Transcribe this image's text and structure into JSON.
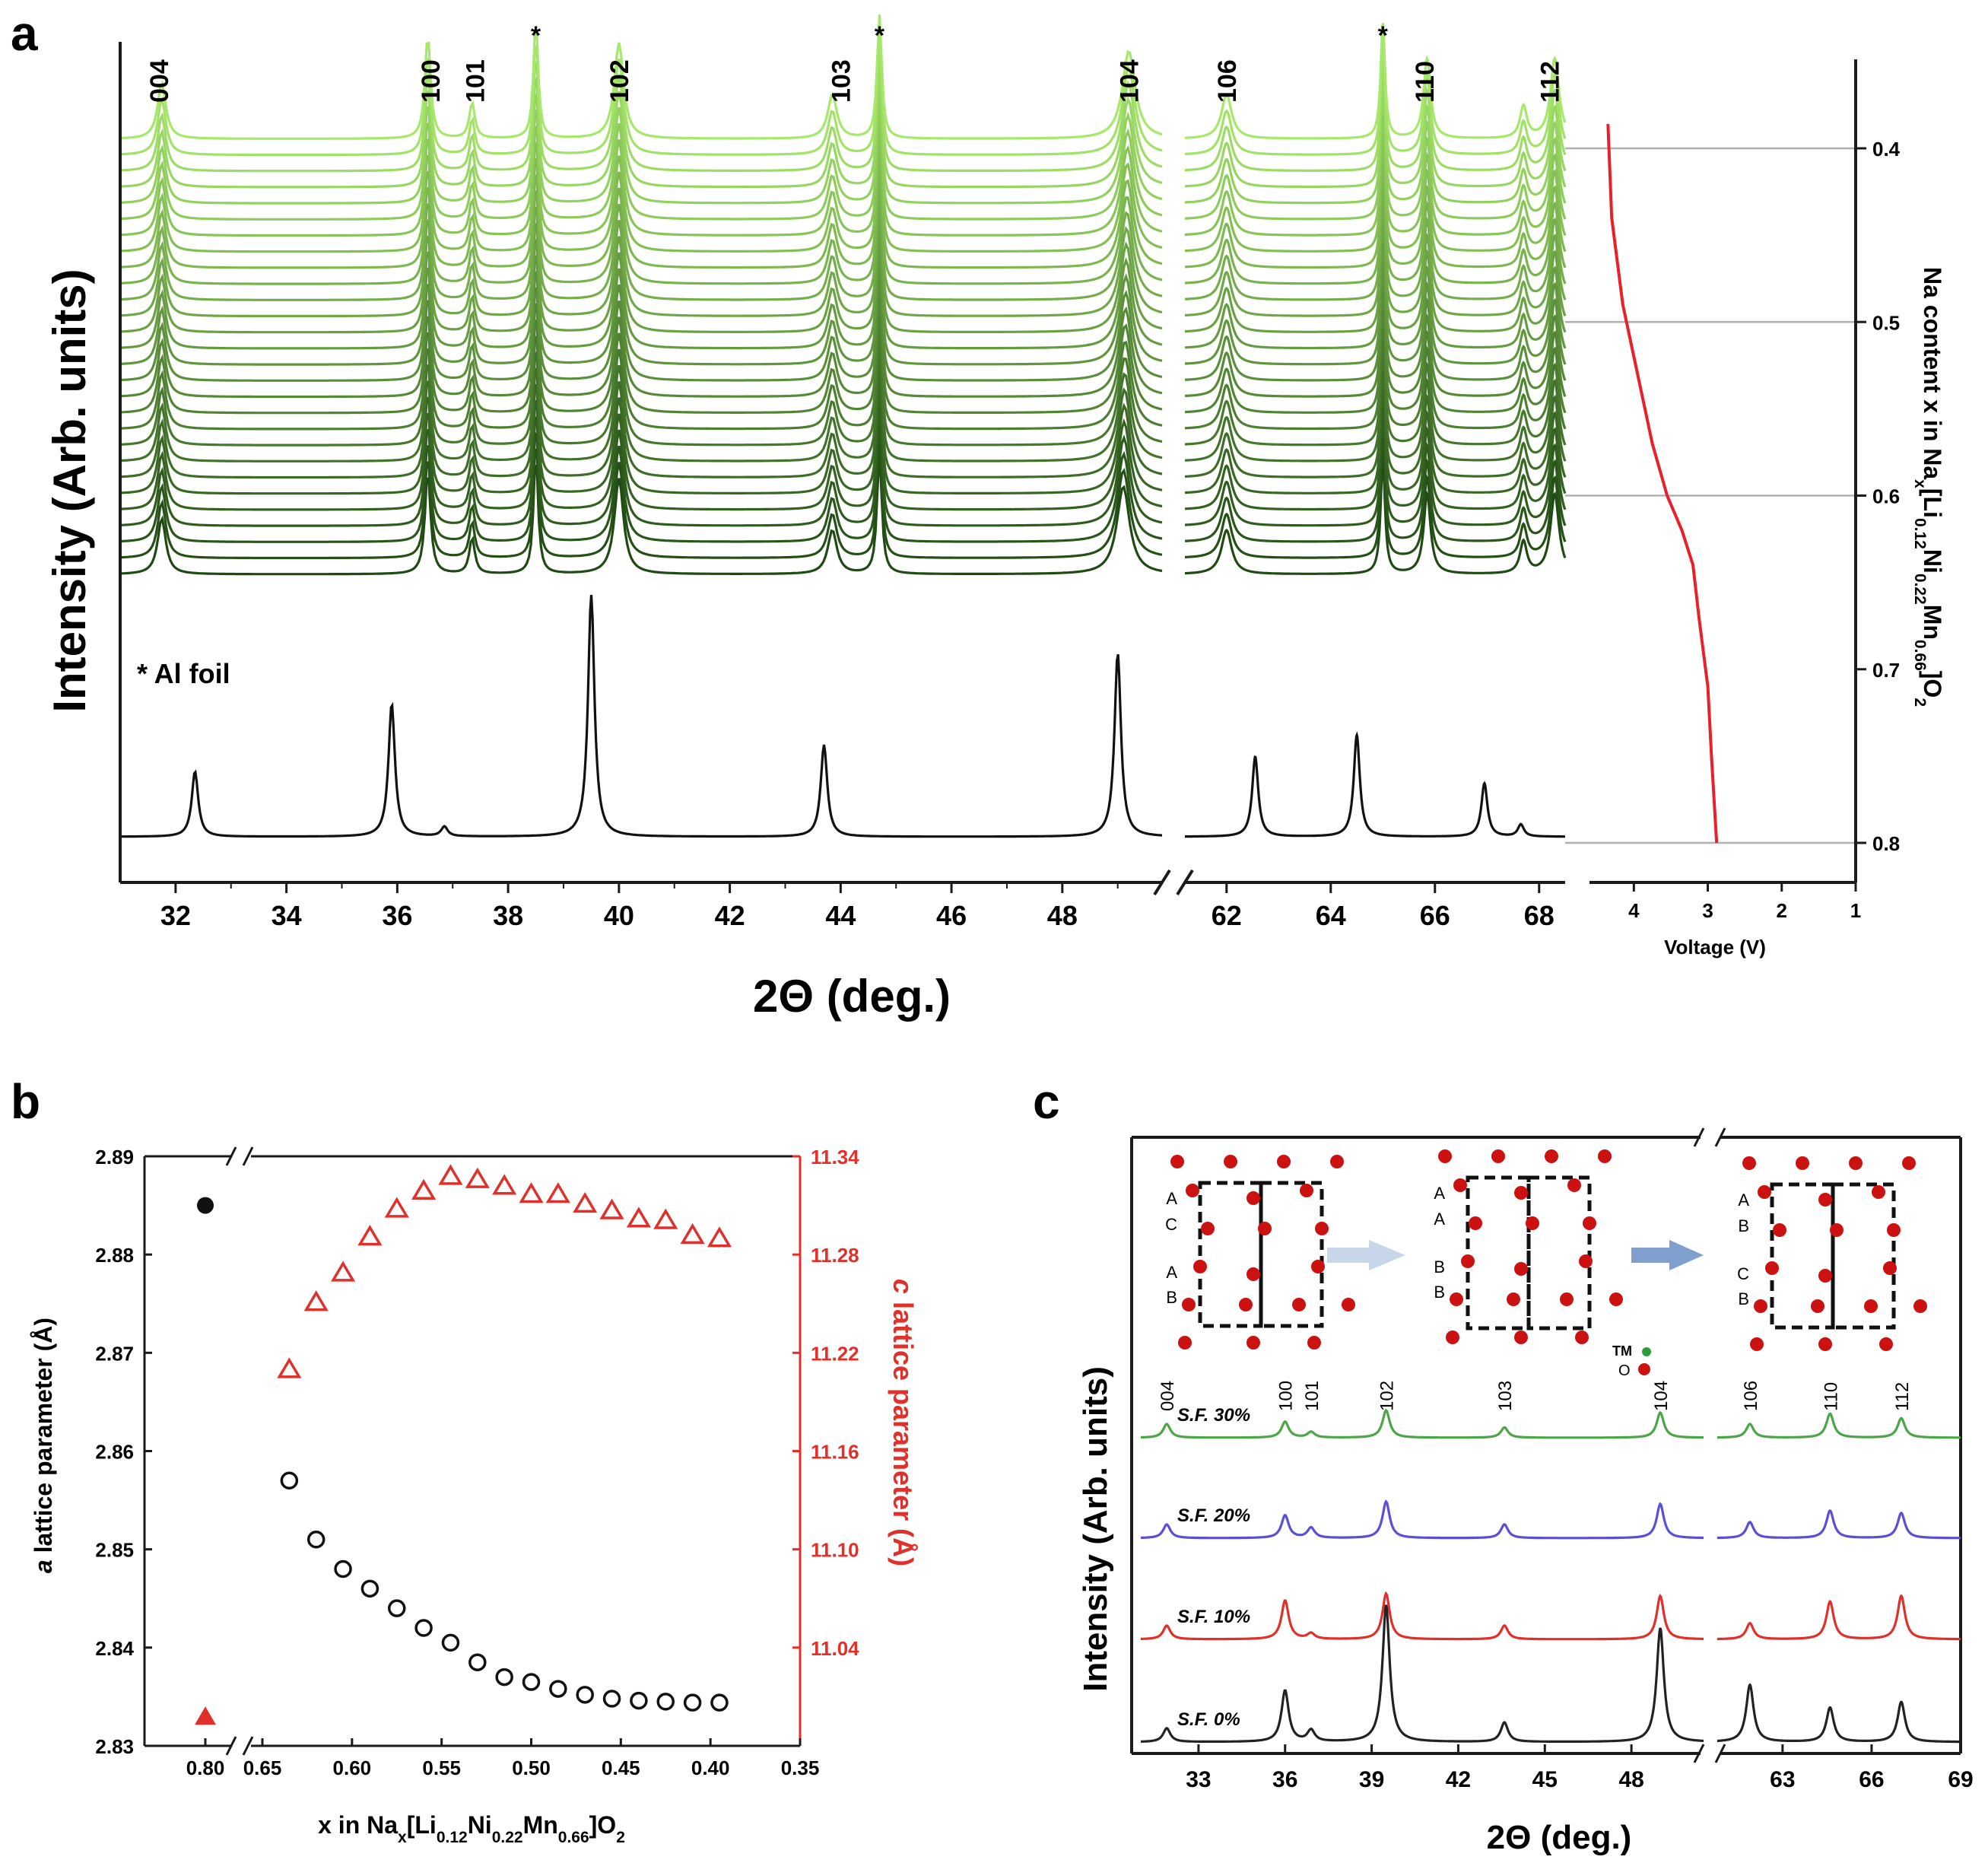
{
  "colors": {
    "axis": "#1a1a1a",
    "voltage": "#e8202a",
    "grid": "#b0b0b0",
    "green_light": "#a6e86a",
    "green_dark": "#1f4a13",
    "red": "#e0302a",
    "blue": "#5a4fd6",
    "sf30": "#4aa646",
    "sf20": "#5a4fd6",
    "sf10": "#e0302a",
    "sf0": "#222222",
    "arrow_left": "#c8d6ea",
    "arrow_right": "#7f9fcf",
    "atom_o": "#cc1111",
    "atom_tm": "#2a9a3a"
  },
  "chart_data": [
    {
      "panel": "a",
      "type": "line",
      "panel_label": "a",
      "ylabel": "Intensity (Arb. units)",
      "xlabel": "2Θ (deg.)",
      "xlim_left": [
        31,
        49.8
      ],
      "xlim_right": [
        61.2,
        68.5
      ],
      "xticks_left": [
        "32",
        "34",
        "36",
        "38",
        "40",
        "42",
        "44",
        "46",
        "48"
      ],
      "xticks_right": [
        "62",
        "64",
        "66",
        "68"
      ],
      "peak_labels": [
        {
          "text": "004",
          "x": 31.7
        },
        {
          "text": "100",
          "x": 36.6
        },
        {
          "text": "101",
          "x": 37.4
        },
        {
          "text": "*",
          "x": 38.5
        },
        {
          "text": "102",
          "x": 40.0
        },
        {
          "text": "103",
          "x": 44.0
        },
        {
          "text": "*",
          "x": 44.7
        },
        {
          "text": "104",
          "x": 49.2
        },
        {
          "text": "106",
          "x": 62.0
        },
        {
          "text": "*",
          "x": 65.0
        },
        {
          "text": "110",
          "x": 65.8
        },
        {
          "text": "112",
          "x": 68.2
        }
      ],
      "annotation": "* Al foil",
      "n_operando_patterns": 28,
      "operando_peaks": [
        {
          "x": 31.75,
          "h": 0.7,
          "w": 0.09
        },
        {
          "x": 36.55,
          "h": 1.3,
          "w": 0.06
        },
        {
          "x": 37.35,
          "h": 0.45,
          "w": 0.06
        },
        {
          "x": 38.5,
          "h": 1.5,
          "w": 0.05
        },
        {
          "x": 40.0,
          "h": 1.2,
          "w": 0.1
        },
        {
          "x": 43.85,
          "h": 0.55,
          "w": 0.1
        },
        {
          "x": 44.7,
          "h": 1.55,
          "w": 0.05
        },
        {
          "x": 49.1,
          "h": 1.1,
          "w": 0.14
        },
        {
          "x": 62.0,
          "h": 0.55,
          "w": 0.12
        },
        {
          "x": 65.0,
          "h": 1.45,
          "w": 0.05
        },
        {
          "x": 65.85,
          "h": 1.0,
          "w": 0.08
        },
        {
          "x": 67.7,
          "h": 0.4,
          "w": 0.08
        },
        {
          "x": 68.3,
          "h": 1.0,
          "w": 0.1
        }
      ],
      "reference_pattern": [
        {
          "x": 32.35,
          "h": 0.27
        },
        {
          "x": 35.9,
          "h": 0.55
        },
        {
          "x": 36.85,
          "h": 0.04
        },
        {
          "x": 39.5,
          "h": 1.0
        },
        {
          "x": 43.7,
          "h": 0.38
        },
        {
          "x": 49.0,
          "h": 0.76
        },
        {
          "x": 62.55,
          "h": 0.33
        },
        {
          "x": 64.5,
          "h": 0.42
        },
        {
          "x": 66.95,
          "h": 0.22
        },
        {
          "x": 67.65,
          "h": 0.05
        }
      ]
    },
    {
      "panel": "a-voltage",
      "type": "line",
      "xlabel": "Voltage (V)",
      "ylabel": "Na content x in Na",
      "ylabel_sub_1": "x",
      "ylabel_mid_1": "[Li",
      "ylabel_sub_2": "0.12",
      "ylabel_mid_2": "Ni",
      "ylabel_sub_3": "0.22",
      "ylabel_mid_3": "Mn",
      "ylabel_sub_4": "0.66",
      "ylabel_mid_4": "]O",
      "ylabel_sub_5": "2",
      "xlim": [
        4.6,
        1.0
      ],
      "ylim": [
        0.35,
        0.83
      ],
      "xticks": [
        "4",
        "3",
        "2",
        "1"
      ],
      "yticks": [
        "0.4",
        "0.5",
        "0.6",
        "0.7",
        "0.8"
      ],
      "gridlines_y": [
        0.4,
        0.5,
        0.6,
        0.8
      ],
      "x": [
        4.35,
        4.3,
        4.15,
        3.95,
        3.75,
        3.55,
        3.35,
        3.2,
        3.12,
        3.0,
        2.95,
        2.88
      ],
      "y": [
        0.386,
        0.44,
        0.49,
        0.53,
        0.57,
        0.6,
        0.62,
        0.64,
        0.67,
        0.71,
        0.75,
        0.8
      ]
    },
    {
      "panel": "b",
      "type": "scatter",
      "panel_label": "b",
      "xlabel": "x in Na",
      "xlabel_sub_1": "x",
      "xlabel_mid_1": "[Li",
      "xlabel_sub_2": "0.12",
      "xlabel_mid_2": "Ni",
      "xlabel_sub_3": "0.22",
      "xlabel_mid_3": "Mn",
      "xlabel_sub_4": "0.66",
      "xlabel_mid_4": "]O",
      "xlabel_sub_5": "2",
      "ylabel_left_italic": "a",
      "ylabel_left": " lattice parameter (Å)",
      "ylabel_right_italic": "c",
      "ylabel_right": " lattice parameter (Å)",
      "xticks": [
        "0.80",
        "0.65",
        "0.60",
        "0.55",
        "0.50",
        "0.45",
        "0.40",
        "0.35"
      ],
      "ylim_left": [
        2.83,
        2.89
      ],
      "yticks_left": [
        "2.83",
        "2.84",
        "2.85",
        "2.86",
        "2.87",
        "2.88",
        "2.89"
      ],
      "ylim_right": [
        10.98,
        11.34
      ],
      "yticks_right": [
        "11.04",
        "11.10",
        "11.16",
        "11.22",
        "11.28",
        "11.34"
      ],
      "series": [
        {
          "marker": "filled-circle",
          "axis": "left",
          "x": [
            0.8
          ],
          "y": [
            2.885
          ]
        },
        {
          "marker": "filled-triangle",
          "axis": "right",
          "x": [
            0.8
          ],
          "y": [
            10.998
          ]
        },
        {
          "marker": "open-circle",
          "axis": "left",
          "x": [
            0.635,
            0.62,
            0.605,
            0.59,
            0.575,
            0.56,
            0.545,
            0.53,
            0.515,
            0.5,
            0.485,
            0.47,
            0.455,
            0.44,
            0.425,
            0.41,
            0.395
          ],
          "y": [
            2.857,
            2.851,
            2.848,
            2.846,
            2.844,
            2.842,
            2.8405,
            2.8385,
            2.837,
            2.8365,
            2.8358,
            2.8352,
            2.8348,
            2.8346,
            2.8345,
            2.8344,
            2.8344
          ]
        },
        {
          "marker": "open-triangle",
          "axis": "right",
          "x": [
            0.635,
            0.62,
            0.605,
            0.59,
            0.575,
            0.56,
            0.545,
            0.53,
            0.515,
            0.5,
            0.485,
            0.47,
            0.455,
            0.44,
            0.425,
            0.41,
            0.395
          ],
          "y": [
            11.21,
            11.251,
            11.269,
            11.291,
            11.308,
            11.319,
            11.328,
            11.326,
            11.322,
            11.317,
            11.317,
            11.311,
            11.307,
            11.302,
            11.301,
            11.292,
            11.29
          ]
        }
      ]
    },
    {
      "panel": "c",
      "type": "line",
      "panel_label": "c",
      "ylabel": "Intensity (Arb. units)",
      "xlabel": "2Θ (deg.)",
      "xlim_left": [
        31,
        50.5
      ],
      "xlim_right": [
        60.8,
        69
      ],
      "xticks_left": [
        "33",
        "36",
        "39",
        "42",
        "45",
        "48"
      ],
      "xticks_right": [
        "63",
        "66",
        "69"
      ],
      "peak_labels": [
        {
          "text": "004",
          "x": 31.9
        },
        {
          "text": "100",
          "x": 36.0
        },
        {
          "text": "101",
          "x": 36.9
        },
        {
          "text": "102",
          "x": 39.5
        },
        {
          "text": "103",
          "x": 43.6
        },
        {
          "text": "104",
          "x": 49.0
        },
        {
          "text": "106",
          "x": 61.9
        },
        {
          "text": "110",
          "x": 64.6
        },
        {
          "text": "112",
          "x": 67.0
        }
      ],
      "series": [
        {
          "name": "S.F. 30%",
          "peaks": [
            [
              31.9,
              0.12
            ],
            [
              36.0,
              0.14
            ],
            [
              36.9,
              0.05
            ],
            [
              39.5,
              0.24
            ],
            [
              43.6,
              0.09
            ],
            [
              49.0,
              0.22
            ],
            [
              61.9,
              0.12
            ],
            [
              64.6,
              0.21
            ],
            [
              67.0,
              0.17
            ]
          ]
        },
        {
          "name": "S.F. 20%",
          "peaks": [
            [
              31.9,
              0.12
            ],
            [
              36.0,
              0.2
            ],
            [
              36.9,
              0.09
            ],
            [
              39.5,
              0.32
            ],
            [
              43.6,
              0.12
            ],
            [
              49.0,
              0.3
            ],
            [
              61.9,
              0.14
            ],
            [
              64.6,
              0.24
            ],
            [
              67.0,
              0.22
            ]
          ]
        },
        {
          "name": "S.F. 10%",
          "peaks": [
            [
              31.9,
              0.12
            ],
            [
              36.0,
              0.34
            ],
            [
              36.9,
              0.05
            ],
            [
              39.5,
              0.4
            ],
            [
              43.6,
              0.12
            ],
            [
              49.0,
              0.38
            ],
            [
              61.9,
              0.14
            ],
            [
              64.6,
              0.33
            ],
            [
              67.0,
              0.38
            ]
          ]
        },
        {
          "name": "S.F. 0%",
          "peaks": [
            [
              31.9,
              0.12
            ],
            [
              36.0,
              0.45
            ],
            [
              36.9,
              0.1
            ],
            [
              39.5,
              1.2
            ],
            [
              43.6,
              0.17
            ],
            [
              49.0,
              1.0
            ],
            [
              61.9,
              0.5
            ],
            [
              64.6,
              0.3
            ],
            [
              67.0,
              0.35
            ]
          ]
        }
      ],
      "stacking": [
        {
          "labels": [
            "A",
            "C",
            "A",
            "B"
          ]
        },
        {
          "labels": [
            "A",
            "A",
            "B",
            "B"
          ]
        },
        {
          "labels": [
            "A",
            "B",
            "C",
            "B"
          ]
        }
      ],
      "legend_tm": "TM",
      "legend_o": "O"
    }
  ]
}
